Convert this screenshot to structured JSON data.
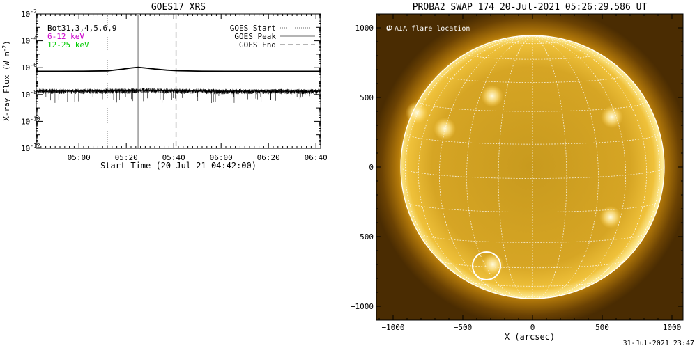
{
  "footer_timestamp": "31-Jul-2021 23:47",
  "chart_data": [
    {
      "type": "line",
      "title": "GOES17 XRS",
      "xlabel": "Start Time (20-Jul-21 04:42:00)",
      "ylabel": "X-ray Flux (W m",
      "ylabel_sup": "-2",
      "ylabel_close": ")",
      "x_ticks": [
        "05:00",
        "05:20",
        "05:40",
        "06:00",
        "06:20",
        "06:40"
      ],
      "x_tick_minutes": [
        18,
        38,
        58,
        78,
        98,
        118
      ],
      "xlim_minutes": [
        0,
        120
      ],
      "ylim_exponent": [
        -12,
        -2
      ],
      "y_ticks": [
        {
          "base": "10",
          "exp": "-2",
          "e": -2
        },
        {
          "base": "10",
          "exp": "-4",
          "e": -4
        },
        {
          "base": "10",
          "exp": "-6",
          "e": -6
        },
        {
          "base": "10",
          "exp": "-8",
          "e": -8
        },
        {
          "base": "10",
          "exp": "-10",
          "e": -10
        },
        {
          "base": "10",
          "exp": "-12",
          "e": -12
        }
      ],
      "legend_left": [
        {
          "text": "Bot31,3,4,5,6,9",
          "color": "#000000"
        },
        {
          "text": "6-12 keV",
          "color": "#cc00cc"
        },
        {
          "text": "12-25 keV",
          "color": "#00cc00"
        }
      ],
      "legend_right": [
        {
          "text": "GOES Start",
          "style": "dotted"
        },
        {
          "text": "GOES Peak",
          "style": "solid"
        },
        {
          "text": "GOES End",
          "style": "dashed"
        }
      ],
      "goes_start_minute": 30,
      "goes_peak_minute": 43,
      "goes_end_minute": 59,
      "series": [
        {
          "x_minutes": [
            0,
            10,
            20,
            30,
            36,
            40,
            43,
            46,
            50,
            55,
            60,
            70,
            80,
            90,
            100,
            110,
            120
          ],
          "log_flux": [
            -6.27,
            -6.27,
            -6.26,
            -6.24,
            -6.12,
            -6.02,
            -5.97,
            -6.02,
            -6.1,
            -6.18,
            -6.23,
            -6.26,
            -6.27,
            -6.27,
            -6.27,
            -6.27,
            -6.27
          ]
        },
        {
          "x_minutes": [
            0,
            20,
            40,
            43,
            60,
            80,
            100,
            120
          ],
          "log_flux": [
            -7.75,
            -7.75,
            -7.72,
            -7.68,
            -7.74,
            -7.76,
            -7.76,
            -7.76
          ]
        }
      ]
    },
    {
      "type": "heatmap",
      "title": "PROBA2 SWAP 174 20-Jul-2021 05:26:29.586 UT",
      "xlabel": "X (arcsec)",
      "ylabel": "",
      "xlim": [
        -1120,
        1080
      ],
      "ylim": [
        -1100,
        1100
      ],
      "x_ticks": [
        -1000,
        -500,
        0,
        500,
        1000
      ],
      "y_ticks": [
        1000,
        500,
        0,
        -500,
        -1000
      ],
      "legend": "O AIA flare location",
      "solar_radius_arcsec": 945,
      "flare_location": {
        "x": -330,
        "y": -710,
        "radius": 100
      },
      "active_regions": [
        {
          "x": -830,
          "y": 390
        },
        {
          "x": -630,
          "y": 275
        },
        {
          "x": 570,
          "y": 360
        },
        {
          "x": 560,
          "y": -360
        },
        {
          "x": -285,
          "y": -700
        },
        {
          "x": -290,
          "y": 510
        }
      ]
    }
  ]
}
